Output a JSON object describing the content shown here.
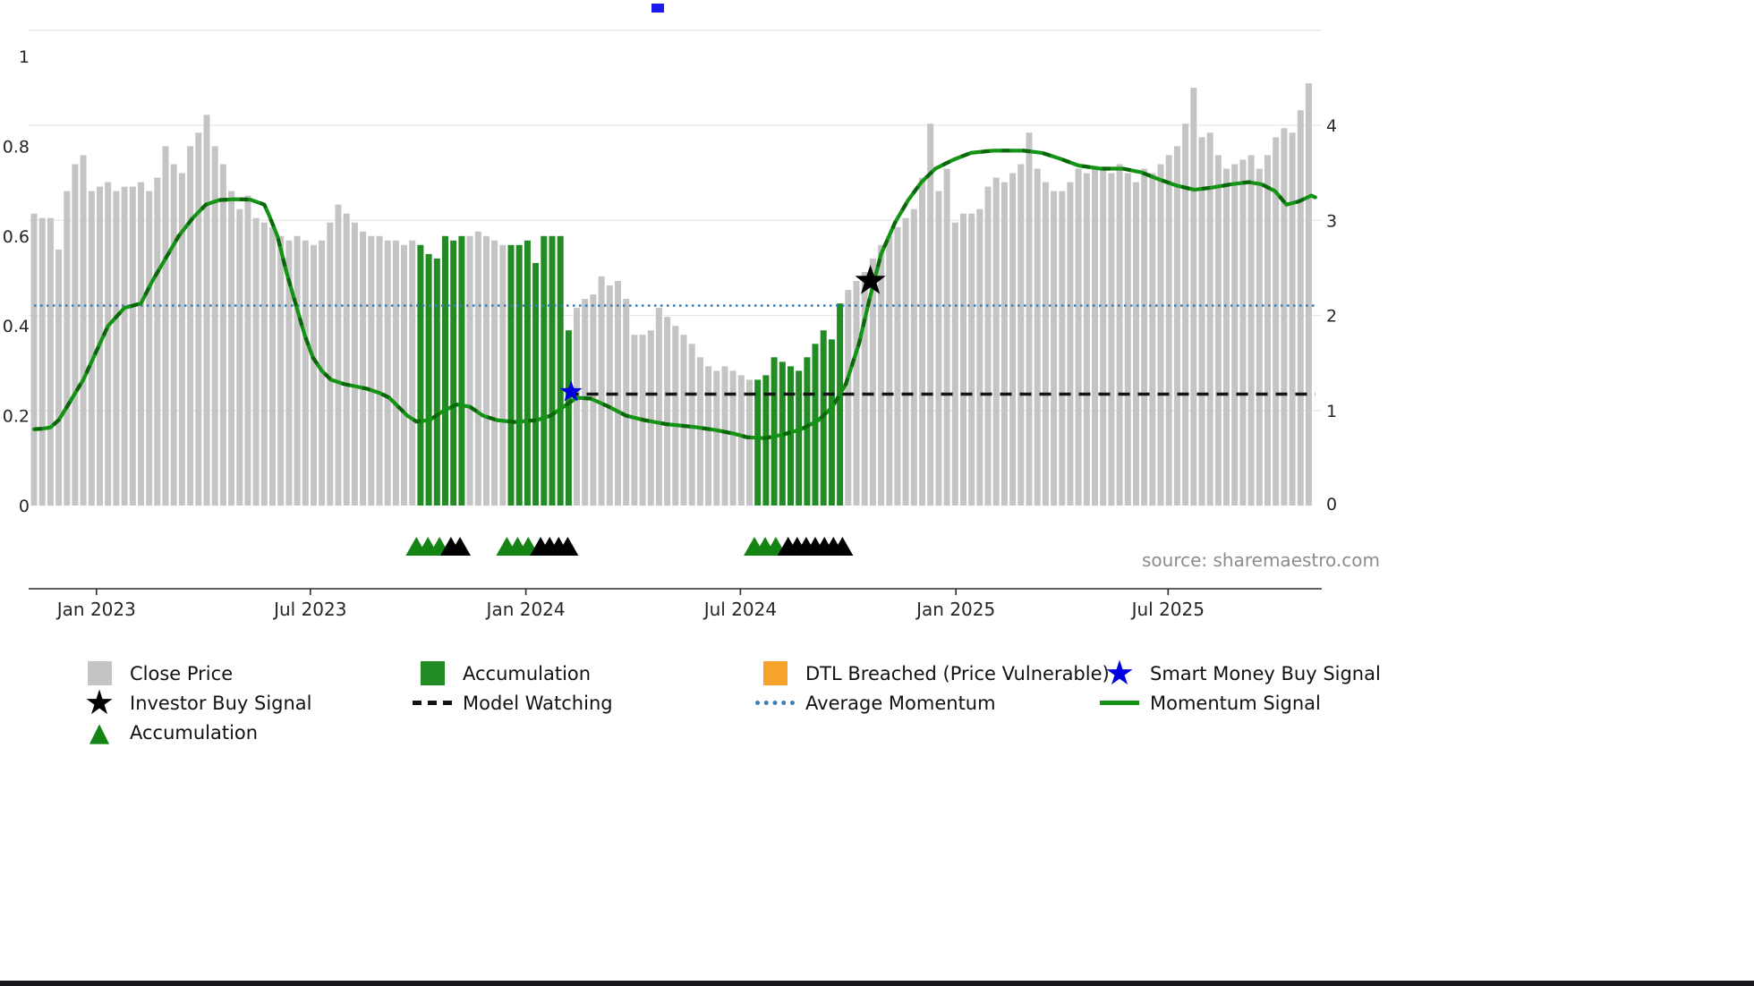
{
  "page": {
    "source_text": "source: sharemaestro.com"
  },
  "chart_data": {
    "type": "composite",
    "subtypes": [
      "bar",
      "line"
    ],
    "grid": "on",
    "x_ticks": [
      {
        "i": 7.6,
        "label": "Jan 2023"
      },
      {
        "i": 33.6,
        "label": "Jul 2023"
      },
      {
        "i": 59.8,
        "label": "Jan 2024"
      },
      {
        "i": 85.9,
        "label": "Jul 2024"
      },
      {
        "i": 112.1,
        "label": "Jan 2025"
      },
      {
        "i": 137.9,
        "label": "Jul 2025"
      }
    ],
    "y_axis_left": {
      "labels": [
        "0",
        "0.2",
        "0.4",
        "0.6",
        "0.8",
        "1"
      ],
      "values": [
        0,
        0.2,
        0.4,
        0.6,
        0.8,
        1
      ],
      "range": [
        0,
        1
      ]
    },
    "y_axis_right": {
      "labels": [
        "0",
        "1",
        "2",
        "3",
        "4"
      ],
      "values": [
        0,
        1,
        2,
        3,
        4
      ],
      "left_per_unit": 0.2117
    },
    "bars": {
      "name": "Close Price",
      "accumulation_name": "Accumulation",
      "color_close": "#c4c4c4",
      "color_accumulation": "#238b23",
      "green_ranges": [
        [
          47,
          52
        ],
        [
          58,
          65
        ],
        [
          88,
          98
        ]
      ],
      "values": [
        0.65,
        0.64,
        0.64,
        0.57,
        0.7,
        0.76,
        0.78,
        0.7,
        0.71,
        0.72,
        0.7,
        0.71,
        0.71,
        0.72,
        0.7,
        0.73,
        0.8,
        0.76,
        0.74,
        0.8,
        0.83,
        0.87,
        0.8,
        0.76,
        0.7,
        0.66,
        0.69,
        0.64,
        0.63,
        0.62,
        0.6,
        0.59,
        0.6,
        0.59,
        0.58,
        0.59,
        0.63,
        0.67,
        0.65,
        0.63,
        0.61,
        0.6,
        0.6,
        0.59,
        0.59,
        0.58,
        0.59,
        0.58,
        0.56,
        0.55,
        0.6,
        0.59,
        0.6,
        0.6,
        0.61,
        0.6,
        0.59,
        0.58,
        0.58,
        0.58,
        0.59,
        0.54,
        0.6,
        0.6,
        0.6,
        0.39,
        0.44,
        0.46,
        0.47,
        0.51,
        0.49,
        0.5,
        0.46,
        0.38,
        0.38,
        0.39,
        0.44,
        0.42,
        0.4,
        0.38,
        0.36,
        0.33,
        0.31,
        0.3,
        0.31,
        0.3,
        0.29,
        0.28,
        0.28,
        0.29,
        0.33,
        0.32,
        0.31,
        0.3,
        0.33,
        0.36,
        0.39,
        0.37,
        0.45,
        0.48,
        0.5,
        0.52,
        0.55,
        0.58,
        0.6,
        0.62,
        0.64,
        0.66,
        0.73,
        0.85,
        0.7,
        0.75,
        0.63,
        0.65,
        0.65,
        0.66,
        0.71,
        0.73,
        0.72,
        0.74,
        0.76,
        0.83,
        0.75,
        0.72,
        0.7,
        0.7,
        0.72,
        0.75,
        0.74,
        0.75,
        0.75,
        0.74,
        0.76,
        0.74,
        0.72,
        0.75,
        0.74,
        0.76,
        0.78,
        0.8,
        0.85,
        0.93,
        0.82,
        0.83,
        0.78,
        0.75,
        0.76,
        0.77,
        0.78,
        0.75,
        0.78,
        0.82,
        0.84,
        0.83,
        0.88,
        0.94
      ]
    },
    "momentum_line": {
      "name": "Momentum Signal",
      "color": "#149414",
      "dash_color": "#0b660b",
      "points": [
        [
          0,
          0.17
        ],
        [
          1,
          0.171
        ],
        [
          2,
          0.174
        ],
        [
          3,
          0.19
        ],
        [
          4,
          0.22
        ],
        [
          5,
          0.25
        ],
        [
          6,
          0.28
        ],
        [
          7,
          0.32
        ],
        [
          8,
          0.36
        ],
        [
          9,
          0.4
        ],
        [
          10,
          0.42
        ],
        [
          11,
          0.44
        ],
        [
          12,
          0.445
        ],
        [
          13,
          0.45
        ],
        [
          14.4,
          0.5
        ],
        [
          16,
          0.55
        ],
        [
          17.6,
          0.6
        ],
        [
          19.3,
          0.64
        ],
        [
          20.9,
          0.67
        ],
        [
          22.5,
          0.68
        ],
        [
          24.5,
          0.682
        ],
        [
          26.3,
          0.681
        ],
        [
          28,
          0.67
        ],
        [
          28.5,
          0.65
        ],
        [
          29.6,
          0.6
        ],
        [
          30.7,
          0.52
        ],
        [
          31.8,
          0.45
        ],
        [
          32.9,
          0.38
        ],
        [
          33.9,
          0.33
        ],
        [
          35,
          0.3
        ],
        [
          36.1,
          0.28
        ],
        [
          37.8,
          0.27
        ],
        [
          39.2,
          0.265
        ],
        [
          40.5,
          0.26
        ],
        [
          42.1,
          0.25
        ],
        [
          43.2,
          0.24
        ],
        [
          44.3,
          0.22
        ],
        [
          45.4,
          0.2
        ],
        [
          46.5,
          0.187
        ],
        [
          48.1,
          0.19
        ],
        [
          49.7,
          0.21
        ],
        [
          51.4,
          0.225
        ],
        [
          53,
          0.22
        ],
        [
          54.6,
          0.2
        ],
        [
          56.3,
          0.19
        ],
        [
          58.4,
          0.186
        ],
        [
          61.1,
          0.19
        ],
        [
          62.8,
          0.2
        ],
        [
          64.4,
          0.22
        ],
        [
          66,
          0.24
        ],
        [
          67.7,
          0.238
        ],
        [
          69.9,
          0.22
        ],
        [
          72,
          0.2
        ],
        [
          74.2,
          0.19
        ],
        [
          76.9,
          0.181
        ],
        [
          80.2,
          0.175
        ],
        [
          82.9,
          0.168
        ],
        [
          85.1,
          0.16
        ],
        [
          86.7,
          0.152
        ],
        [
          88.9,
          0.15
        ],
        [
          91.1,
          0.158
        ],
        [
          93.3,
          0.17
        ],
        [
          95.4,
          0.19
        ],
        [
          97.1,
          0.22
        ],
        [
          98.7,
          0.27
        ],
        [
          100.3,
          0.36
        ],
        [
          101.6,
          0.46
        ],
        [
          103,
          0.56
        ],
        [
          104.7,
          0.63
        ],
        [
          106.3,
          0.68
        ],
        [
          107.9,
          0.72
        ],
        [
          109.6,
          0.75
        ],
        [
          111.8,
          0.77
        ],
        [
          113.9,
          0.785
        ],
        [
          116.6,
          0.79
        ],
        [
          120.4,
          0.79
        ],
        [
          122.6,
          0.785
        ],
        [
          124.8,
          0.772
        ],
        [
          127,
          0.757
        ],
        [
          129.7,
          0.75
        ],
        [
          132.4,
          0.75
        ],
        [
          134.6,
          0.742
        ],
        [
          136.8,
          0.726
        ],
        [
          139,
          0.712
        ],
        [
          141.1,
          0.703
        ],
        [
          143.3,
          0.708
        ],
        [
          145.5,
          0.715
        ],
        [
          147.7,
          0.72
        ],
        [
          149.3,
          0.715
        ],
        [
          150.9,
          0.7
        ],
        [
          152.3,
          0.67
        ],
        [
          153.8,
          0.677
        ],
        [
          155.3,
          0.69
        ],
        [
          155.8,
          0.686
        ]
      ]
    },
    "average_momentum": {
      "name": "Average Momentum",
      "value": 0.445,
      "color": "#3a7ebf"
    },
    "model_watching": {
      "name": "Model Watching",
      "value": 0.248,
      "x_start": 64.8,
      "x_end": 155.8,
      "color": "#141414"
    },
    "markers": {
      "smart_money_buy_signal": {
        "name": "Smart Money Buy Signal",
        "i": 65.3,
        "value": 0.253,
        "color": "#0000e0"
      },
      "investor_buy_signal": {
        "name": "Investor Buy Signal",
        "i": 101.7,
        "value": 0.5,
        "color": "#000000"
      },
      "accumulation_triangles": {
        "name": "Accumulation",
        "color_green": "#148514",
        "color_black": "#000000",
        "green_i": [
          46.5,
          47.9,
          49.3,
          57.5,
          58.8,
          60.1,
          87.6,
          88.9,
          90.2
        ],
        "black_i": [
          50.7,
          51.8,
          61.6,
          62.7,
          63.8,
          64.9,
          91.7,
          92.8,
          93.9,
          95.0,
          96.1,
          97.2,
          98.3
        ]
      }
    }
  },
  "legend": {
    "items": [
      {
        "label": "Close Price",
        "swatch": "square",
        "color": "#c4c4c4"
      },
      {
        "label": "Accumulation",
        "swatch": "square",
        "color": "#238b23"
      },
      {
        "label": "DTL Breached (Price Vulnerable)",
        "swatch": "square",
        "color": "#f5a32a"
      },
      {
        "label": "Smart Money Buy Signal",
        "swatch": "star",
        "color": "#0000e0"
      },
      {
        "label": "Investor Buy Signal",
        "swatch": "star",
        "color": "#000000"
      },
      {
        "label": "Model Watching",
        "swatch": "line-dashed",
        "color": "#141414"
      },
      {
        "label": "Average Momentum",
        "swatch": "line-dotted",
        "color": "#3a7ebf"
      },
      {
        "label": "Momentum Signal",
        "swatch": "line-solid",
        "color": "#149414"
      },
      {
        "label": "Accumulation",
        "swatch": "triangle",
        "color": "#148514"
      }
    ]
  }
}
